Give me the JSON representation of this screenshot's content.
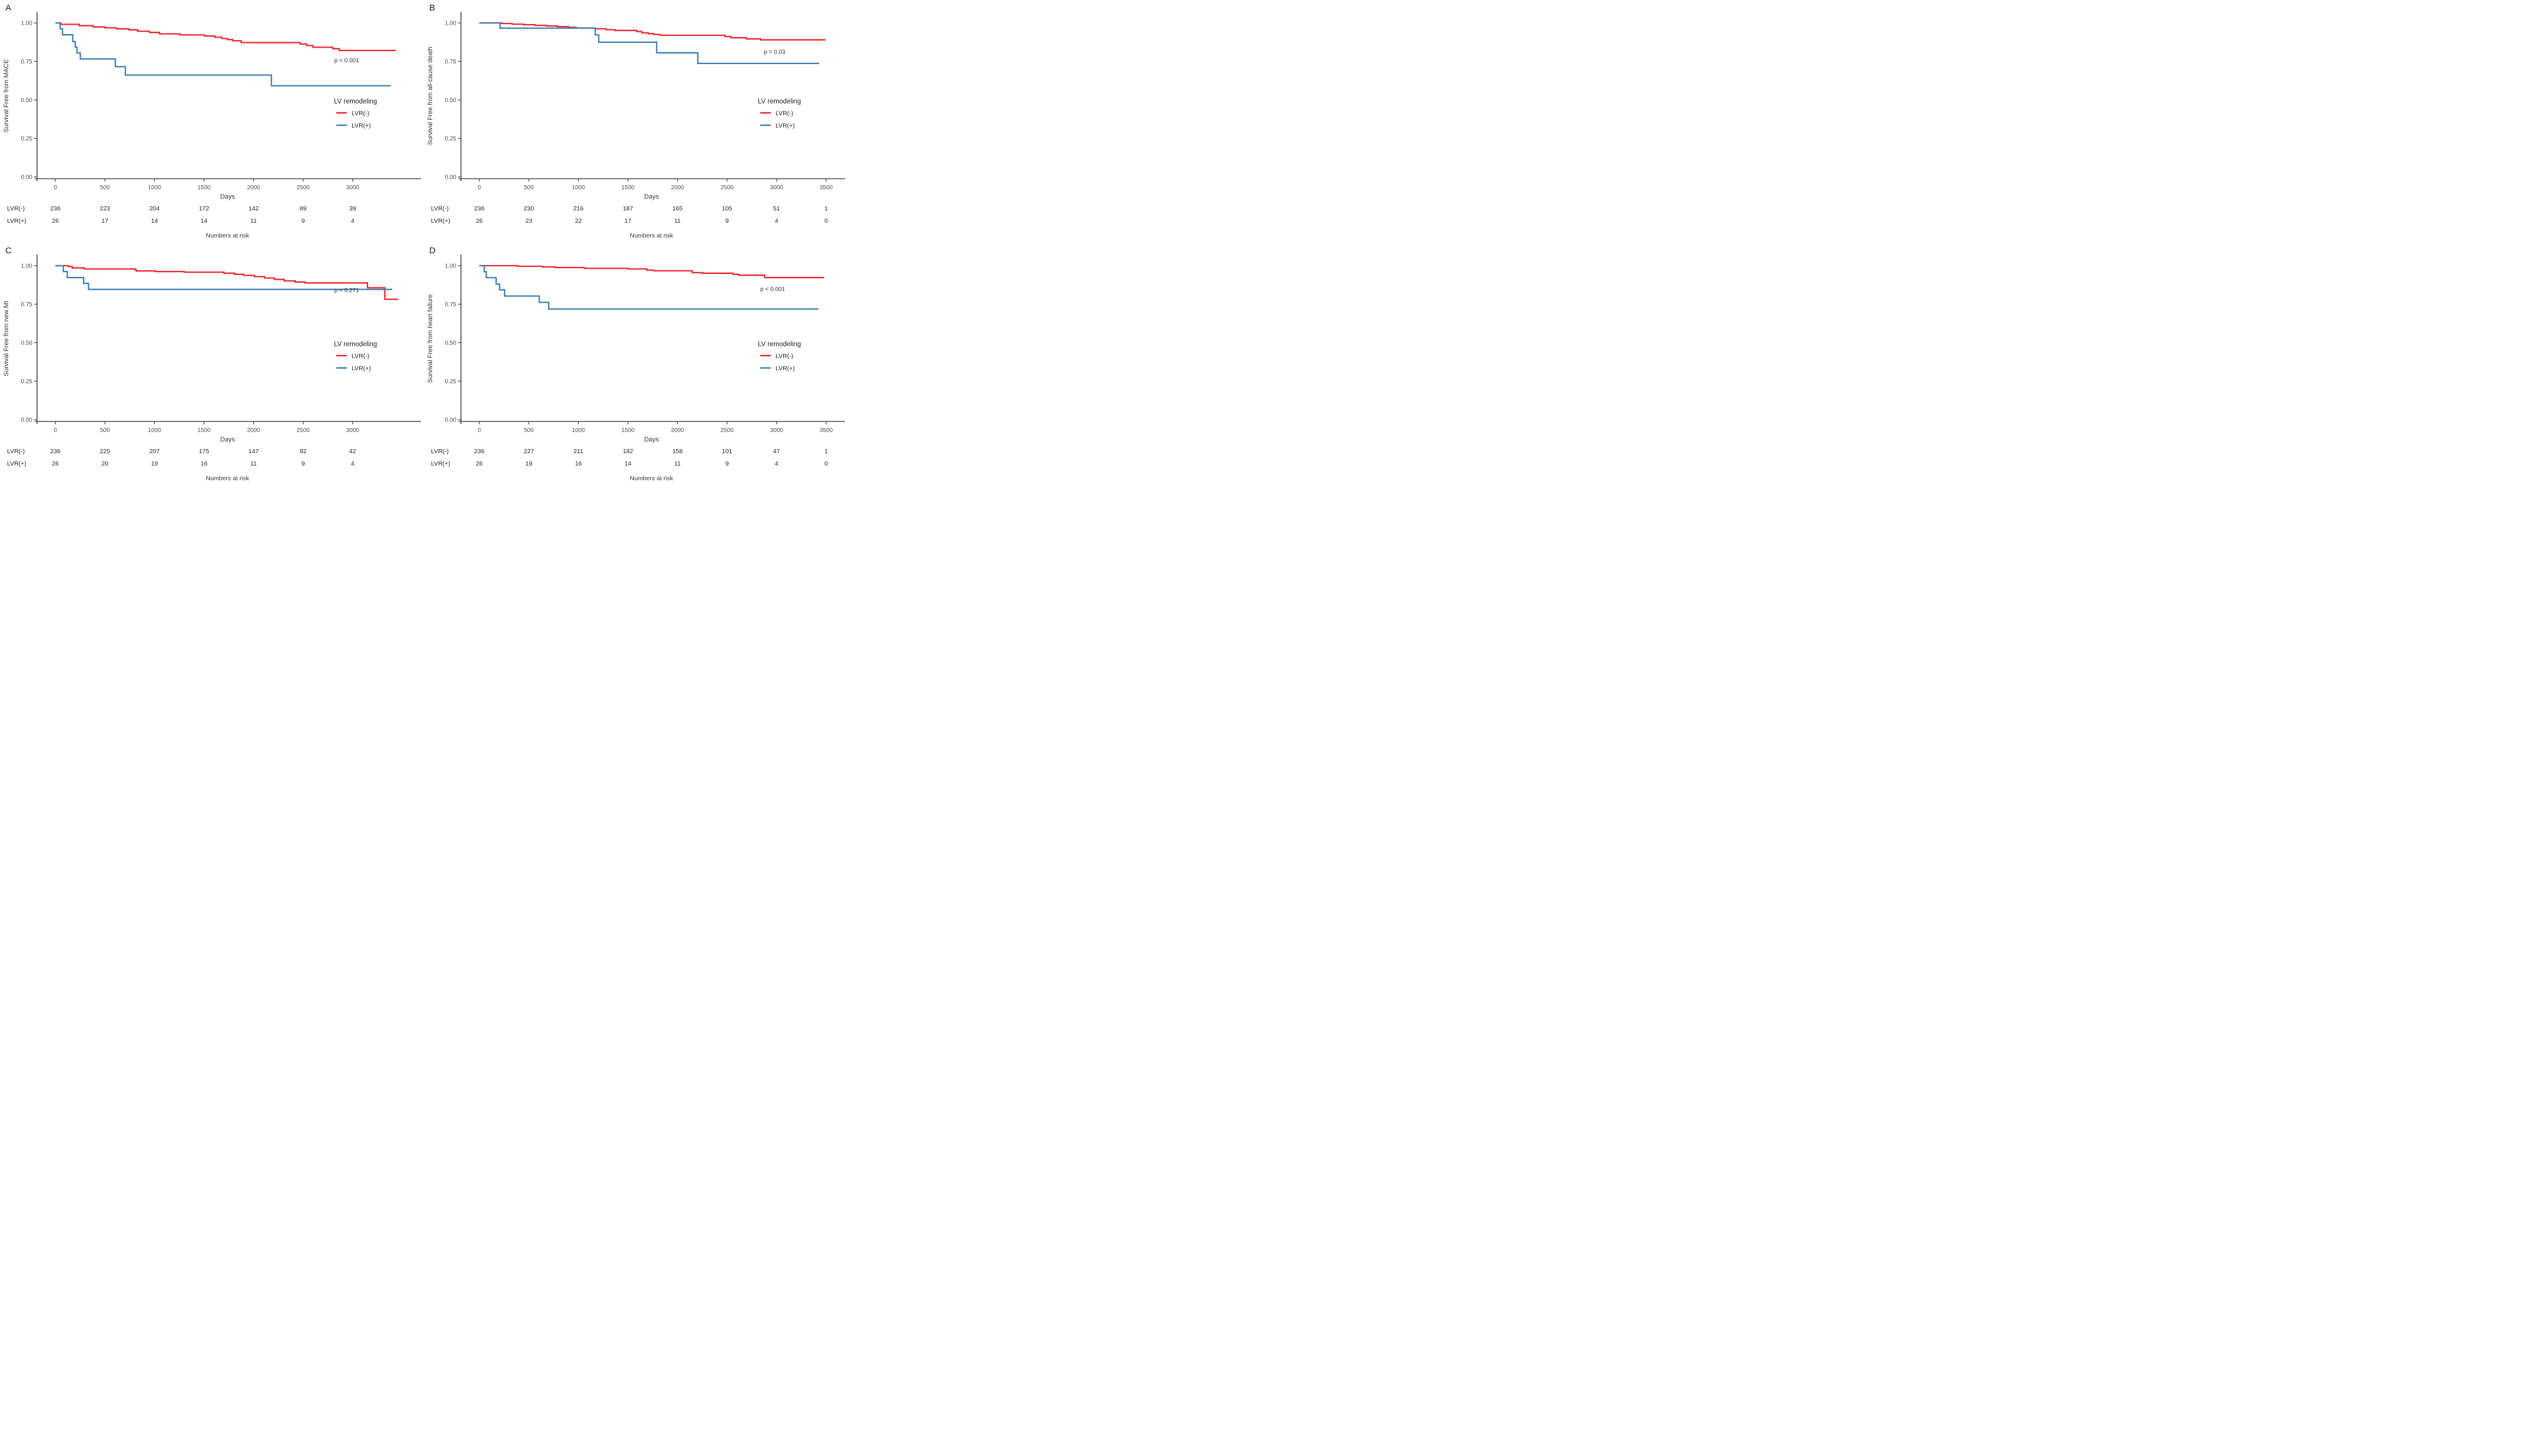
{
  "figure": {
    "caption_risk": "Numbers at risk",
    "x_axis_label": "Days",
    "legend_title": "LV remodeling",
    "colors": {
      "lvr_neg": "#e9252b",
      "lvr_pos": "#3e7eb5",
      "axis": "#4a4a4a",
      "tick_text": "#4d4d4d",
      "label_text": "#333333",
      "number_text": "#222222",
      "background": "#ffffff"
    }
  },
  "layout_hints": {
    "grid": "2x2",
    "legend_position": "right-center-of-plot",
    "y_gridlines": false
  },
  "chart_data": [
    {
      "letter": "A",
      "type": "line",
      "subtype": "kaplan-meier-step",
      "ylabel": "Survival Free from MACE",
      "xlabel": "Days",
      "p_value": "p < 0.001",
      "p_pos": {
        "day": 2940,
        "surv": 0.745
      },
      "xlim": [
        -185,
        3660
      ],
      "ylim": [
        0,
        1.05
      ],
      "x_ticks": [
        0,
        500,
        1000,
        1500,
        2000,
        2500,
        3000
      ],
      "y_ticks": [
        1.0,
        0.75,
        0.5,
        0.25,
        0.0
      ],
      "y_tick_labels": [
        "1.00",
        "0.75",
        "0.50",
        "0.25",
        "0.00"
      ],
      "legend": {
        "title": "LV remodeling",
        "entries": [
          {
            "label": "LVR(-)",
            "color": "#e9252b"
          },
          {
            "label": "LVR(+)",
            "color": "#3e7eb5"
          }
        ]
      },
      "series": [
        {
          "name": "LVR(-)",
          "color": "#e9252b",
          "points": [
            [
              0,
              1.0
            ],
            [
              55,
              0.991
            ],
            [
              240,
              0.982
            ],
            [
              380,
              0.974
            ],
            [
              500,
              0.968
            ],
            [
              620,
              0.961
            ],
            [
              745,
              0.955
            ],
            [
              830,
              0.946
            ],
            [
              950,
              0.938
            ],
            [
              1050,
              0.929
            ],
            [
              1255,
              0.922
            ],
            [
              1505,
              0.915
            ],
            [
              1610,
              0.907
            ],
            [
              1680,
              0.899
            ],
            [
              1735,
              0.892
            ],
            [
              1790,
              0.884
            ],
            [
              1875,
              0.872
            ],
            [
              2470,
              0.863
            ],
            [
              2535,
              0.853
            ],
            [
              2600,
              0.842
            ],
            [
              2800,
              0.833
            ],
            [
              2865,
              0.821
            ],
            [
              3435,
              0.821
            ]
          ]
        },
        {
          "name": "LVR(+)",
          "color": "#3e7eb5",
          "points": [
            [
              0,
              1.0
            ],
            [
              48,
              0.962
            ],
            [
              72,
              0.923
            ],
            [
              175,
              0.879
            ],
            [
              200,
              0.844
            ],
            [
              218,
              0.805
            ],
            [
              252,
              0.766
            ],
            [
              605,
              0.716
            ],
            [
              706,
              0.662
            ],
            [
              2180,
              0.592
            ],
            [
              3385,
              0.592
            ]
          ]
        }
      ],
      "risk_table": {
        "caption": "Numbers at risk",
        "columns": [
          0,
          500,
          1000,
          1500,
          2000,
          2500,
          3000
        ],
        "rows": [
          {
            "label": "LVR(-)",
            "values": [
              "236",
              "223",
              "204",
              "172",
              "142",
              "89",
              "39"
            ]
          },
          {
            "label": "LVR(+)",
            "values": [
              "26",
              "17",
              "14",
              "14",
              "11",
              "9",
              "4"
            ]
          }
        ]
      }
    },
    {
      "letter": "B",
      "type": "line",
      "subtype": "kaplan-meier-step",
      "ylabel": "Survival Free from all-cause death",
      "xlabel": "Days",
      "p_value": "p = 0.03",
      "p_pos": {
        "day": 2980,
        "surv": 0.8
      },
      "xlim": [
        -185,
        3660
      ],
      "ylim": [
        0,
        1.05
      ],
      "x_ticks": [
        0,
        500,
        1000,
        1500,
        2000,
        2500,
        3000,
        3500
      ],
      "y_ticks": [
        1.0,
        0.75,
        0.5,
        0.25,
        0.0
      ],
      "y_tick_labels": [
        "1.00",
        "0.75",
        "0.50",
        "0.25",
        "0.00"
      ],
      "legend": {
        "title": "LV remodeling",
        "entries": [
          {
            "label": "LVR(-)",
            "color": "#e9252b"
          },
          {
            "label": "LVR(+)",
            "color": "#3e7eb5"
          }
        ]
      },
      "series": [
        {
          "name": "LVR(-)",
          "color": "#e9252b",
          "points": [
            [
              0,
              1.0
            ],
            [
              230,
              0.996
            ],
            [
              330,
              0.992
            ],
            [
              450,
              0.988
            ],
            [
              560,
              0.984
            ],
            [
              680,
              0.98
            ],
            [
              790,
              0.976
            ],
            [
              900,
              0.971
            ],
            [
              980,
              0.967
            ],
            [
              1170,
              0.962
            ],
            [
              1280,
              0.956
            ],
            [
              1370,
              0.951
            ],
            [
              1590,
              0.944
            ],
            [
              1640,
              0.936
            ],
            [
              1705,
              0.93
            ],
            [
              1760,
              0.925
            ],
            [
              1825,
              0.92
            ],
            [
              2480,
              0.912
            ],
            [
              2540,
              0.904
            ],
            [
              2695,
              0.896
            ],
            [
              2840,
              0.89
            ],
            [
              3495,
              0.89
            ]
          ]
        },
        {
          "name": "LVR(+)",
          "color": "#3e7eb5",
          "points": [
            [
              0,
              1.0
            ],
            [
              210,
              0.966
            ],
            [
              1170,
              0.922
            ],
            [
              1205,
              0.875
            ],
            [
              1790,
              0.806
            ],
            [
              2205,
              0.737
            ],
            [
              3430,
              0.737
            ]
          ]
        }
      ],
      "risk_table": {
        "caption": "Numbers at risk",
        "columns": [
          0,
          500,
          1000,
          1500,
          2000,
          2500,
          3000,
          3500
        ],
        "rows": [
          {
            "label": "LVR(-)",
            "values": [
              "236",
              "230",
              "216",
              "187",
              "165",
              "105",
              "51",
              "1"
            ]
          },
          {
            "label": "LVR(+)",
            "values": [
              "26",
              "23",
              "22",
              "17",
              "11",
              "9",
              "4",
              "0"
            ]
          }
        ]
      }
    },
    {
      "letter": "C",
      "type": "line",
      "subtype": "kaplan-meier-step",
      "ylabel": "Survival Free from new MI",
      "xlabel": "Days",
      "p_value": "p = 0.271",
      "p_pos": {
        "day": 2940,
        "surv": 0.828
      },
      "xlim": [
        -185,
        3660
      ],
      "ylim": [
        0,
        1.05
      ],
      "x_ticks": [
        0,
        500,
        1000,
        1500,
        2000,
        2500,
        3000
      ],
      "y_ticks": [
        1.0,
        0.75,
        0.5,
        0.25,
        0.0
      ],
      "y_tick_labels": [
        "1.00",
        "0.75",
        "0.50",
        "0.25",
        "0.00"
      ],
      "legend": {
        "title": "LV remodeling",
        "entries": [
          {
            "label": "LVR(-)",
            "color": "#e9252b"
          },
          {
            "label": "LVR(+)",
            "color": "#3e7eb5"
          }
        ]
      },
      "series": [
        {
          "name": "LVR(-)",
          "color": "#e9252b",
          "points": [
            [
              0,
              1.0
            ],
            [
              130,
              0.995
            ],
            [
              170,
              0.986
            ],
            [
              290,
              0.979
            ],
            [
              800,
              0.976
            ],
            [
              815,
              0.966
            ],
            [
              1010,
              0.962
            ],
            [
              1300,
              0.958
            ],
            [
              1700,
              0.951
            ],
            [
              1810,
              0.944
            ],
            [
              1900,
              0.937
            ],
            [
              2010,
              0.929
            ],
            [
              2110,
              0.92
            ],
            [
              2210,
              0.911
            ],
            [
              2310,
              0.901
            ],
            [
              2420,
              0.894
            ],
            [
              2520,
              0.888
            ],
            [
              3150,
              0.857
            ],
            [
              3325,
              0.782
            ],
            [
              3460,
              0.782
            ]
          ]
        },
        {
          "name": "LVR(+)",
          "color": "#3e7eb5",
          "points": [
            [
              0,
              1.0
            ],
            [
              80,
              0.962
            ],
            [
              120,
              0.923
            ],
            [
              285,
              0.885
            ],
            [
              335,
              0.846
            ],
            [
              3400,
              0.846
            ]
          ]
        }
      ],
      "risk_table": {
        "caption": "Numbers at risk",
        "columns": [
          0,
          500,
          1000,
          1500,
          2000,
          2500,
          3000
        ],
        "rows": [
          {
            "label": "LVR(-)",
            "values": [
              "236",
              "225",
              "207",
              "175",
              "147",
              "92",
              "42"
            ]
          },
          {
            "label": "LVR(+)",
            "values": [
              "26",
              "20",
              "19",
              "16",
              "11",
              "9",
              "4"
            ]
          }
        ]
      }
    },
    {
      "letter": "D",
      "type": "line",
      "subtype": "kaplan-meier-step",
      "ylabel": "Survival Free from heart failure",
      "xlabel": "Days",
      "p_value": "p < 0.001",
      "p_pos": {
        "day": 2960,
        "surv": 0.836
      },
      "xlim": [
        -185,
        3660
      ],
      "ylim": [
        0,
        1.05
      ],
      "x_ticks": [
        0,
        500,
        1000,
        1500,
        2000,
        2500,
        3000,
        3500
      ],
      "y_ticks": [
        1.0,
        0.75,
        0.5,
        0.25,
        0.0
      ],
      "y_tick_labels": [
        "1.00",
        "0.75",
        "0.50",
        "0.25",
        "0.00"
      ],
      "legend": {
        "title": "LV remodeling",
        "entries": [
          {
            "label": "LVR(-)",
            "color": "#e9252b"
          },
          {
            "label": "LVR(+)",
            "color": "#3e7eb5"
          }
        ]
      },
      "series": [
        {
          "name": "LVR(-)",
          "color": "#e9252b",
          "points": [
            [
              0,
              1.0
            ],
            [
              390,
              0.996
            ],
            [
              640,
              0.992
            ],
            [
              770,
              0.988
            ],
            [
              1060,
              0.983
            ],
            [
              1500,
              0.979
            ],
            [
              1690,
              0.971
            ],
            [
              1760,
              0.967
            ],
            [
              2150,
              0.955
            ],
            [
              2250,
              0.951
            ],
            [
              2560,
              0.944
            ],
            [
              2620,
              0.938
            ],
            [
              2880,
              0.923
            ],
            [
              3480,
              0.923
            ]
          ]
        },
        {
          "name": "LVR(+)",
          "color": "#3e7eb5",
          "points": [
            [
              0,
              1.0
            ],
            [
              50,
              0.961
            ],
            [
              70,
              0.922
            ],
            [
              170,
              0.88
            ],
            [
              205,
              0.843
            ],
            [
              255,
              0.803
            ],
            [
              605,
              0.762
            ],
            [
              700,
              0.719
            ],
            [
              3425,
              0.719
            ]
          ]
        }
      ],
      "risk_table": {
        "caption": "Numbers at risk",
        "columns": [
          0,
          500,
          1000,
          1500,
          2000,
          2500,
          3000,
          3500
        ],
        "rows": [
          {
            "label": "LVR(-)",
            "values": [
              "236",
              "227",
              "211",
              "182",
              "158",
              "101",
              "47",
              "1"
            ]
          },
          {
            "label": "LVR(+)",
            "values": [
              "26",
              "19",
              "16",
              "14",
              "11",
              "9",
              "4",
              "0"
            ]
          }
        ]
      }
    }
  ]
}
